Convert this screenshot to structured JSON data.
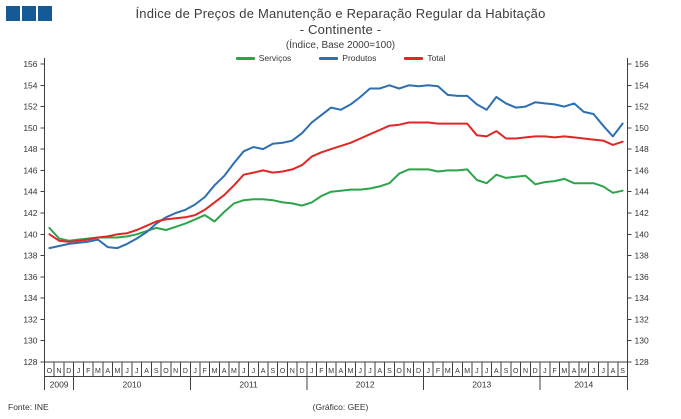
{
  "branding": {
    "logo_squares": 3,
    "logo_color": "#155a96"
  },
  "footer": {
    "source": "Fonte: INE",
    "credit": "(Gráfico: GEE)"
  },
  "chart_data": {
    "type": "line",
    "title": "Índice de Preços de Manutenção e Reparação Regular da Habitação",
    "subtitle": "- Continente -",
    "caption": "(Índice, Base 2000=100)",
    "xlabel": "",
    "ylabel": "",
    "ylim": [
      128,
      156
    ],
    "ytick_step": 2,
    "grid": false,
    "legend_position": "top-center",
    "axis_color": "#404040",
    "text_color": "#333333",
    "x_months": [
      "O",
      "N",
      "D",
      "J",
      "F",
      "M",
      "A",
      "M",
      "J",
      "J",
      "A",
      "S",
      "O",
      "N",
      "D",
      "J",
      "F",
      "M",
      "A",
      "M",
      "J",
      "J",
      "A",
      "S",
      "O",
      "N",
      "D",
      "J",
      "F",
      "M",
      "A",
      "M",
      "J",
      "J",
      "A",
      "S",
      "O",
      "N",
      "D",
      "J",
      "F",
      "M",
      "A",
      "M",
      "J",
      "J",
      "A",
      "S",
      "O",
      "N",
      "D",
      "J",
      "F",
      "M",
      "A",
      "M",
      "J",
      "J",
      "A",
      "S"
    ],
    "x_years": [
      {
        "label": "2009",
        "span": 3
      },
      {
        "label": "2010",
        "span": 12
      },
      {
        "label": "2011",
        "span": 12
      },
      {
        "label": "2012",
        "span": 12
      },
      {
        "label": "2013",
        "span": 12
      },
      {
        "label": "2014",
        "span": 9
      }
    ],
    "series": [
      {
        "id": "servicos",
        "name": "Serviços",
        "color": "#2ea44a",
        "values": [
          140.6,
          139.6,
          139.4,
          139.5,
          139.6,
          139.7,
          139.7,
          139.7,
          139.8,
          140.0,
          140.3,
          140.6,
          140.4,
          140.7,
          141.0,
          141.4,
          141.8,
          141.2,
          142.1,
          142.9,
          143.2,
          143.3,
          143.3,
          143.2,
          143.0,
          142.9,
          142.7,
          143.0,
          143.6,
          144.0,
          144.1,
          144.2,
          144.2,
          144.3,
          144.5,
          144.8,
          145.7,
          146.1,
          146.1,
          146.1,
          145.9,
          146.0,
          146.0,
          146.1,
          145.1,
          144.8,
          145.6,
          145.3,
          145.4,
          145.5,
          144.7,
          144.9,
          145.0,
          145.2,
          144.8,
          144.8,
          144.8,
          144.5,
          143.9,
          144.1
        ]
      },
      {
        "id": "produtos",
        "name": "Produtos",
        "color": "#2d6fb2",
        "values": [
          138.7,
          138.9,
          139.1,
          139.2,
          139.3,
          139.5,
          138.8,
          138.7,
          139.1,
          139.6,
          140.2,
          141.0,
          141.6,
          142.0,
          142.3,
          142.8,
          143.5,
          144.6,
          145.5,
          146.7,
          147.8,
          148.2,
          148.0,
          148.5,
          148.6,
          148.8,
          149.5,
          150.5,
          151.2,
          151.9,
          151.7,
          152.2,
          152.9,
          153.7,
          153.7,
          154.0,
          153.7,
          154.0,
          153.9,
          154.0,
          153.9,
          153.1,
          153.0,
          153.0,
          152.2,
          151.7,
          152.9,
          152.3,
          151.9,
          152.0,
          152.4,
          152.3,
          152.2,
          152.0,
          152.3,
          151.5,
          151.3,
          150.2,
          149.2,
          150.4
        ]
      },
      {
        "id": "total",
        "name": "Total",
        "color": "#e12726",
        "values": [
          140.0,
          139.4,
          139.3,
          139.4,
          139.5,
          139.7,
          139.8,
          140.0,
          140.1,
          140.4,
          140.8,
          141.2,
          141.4,
          141.5,
          141.6,
          141.8,
          142.3,
          143.0,
          143.7,
          144.6,
          145.6,
          145.8,
          146.0,
          145.8,
          145.9,
          146.1,
          146.5,
          147.3,
          147.7,
          148.0,
          148.3,
          148.6,
          149.0,
          149.4,
          149.8,
          150.2,
          150.3,
          150.5,
          150.5,
          150.5,
          150.4,
          150.4,
          150.4,
          150.4,
          149.3,
          149.2,
          149.7,
          149.0,
          149.0,
          149.1,
          149.2,
          149.2,
          149.1,
          149.2,
          149.1,
          149.0,
          148.9,
          148.8,
          148.4,
          148.7
        ]
      }
    ]
  }
}
